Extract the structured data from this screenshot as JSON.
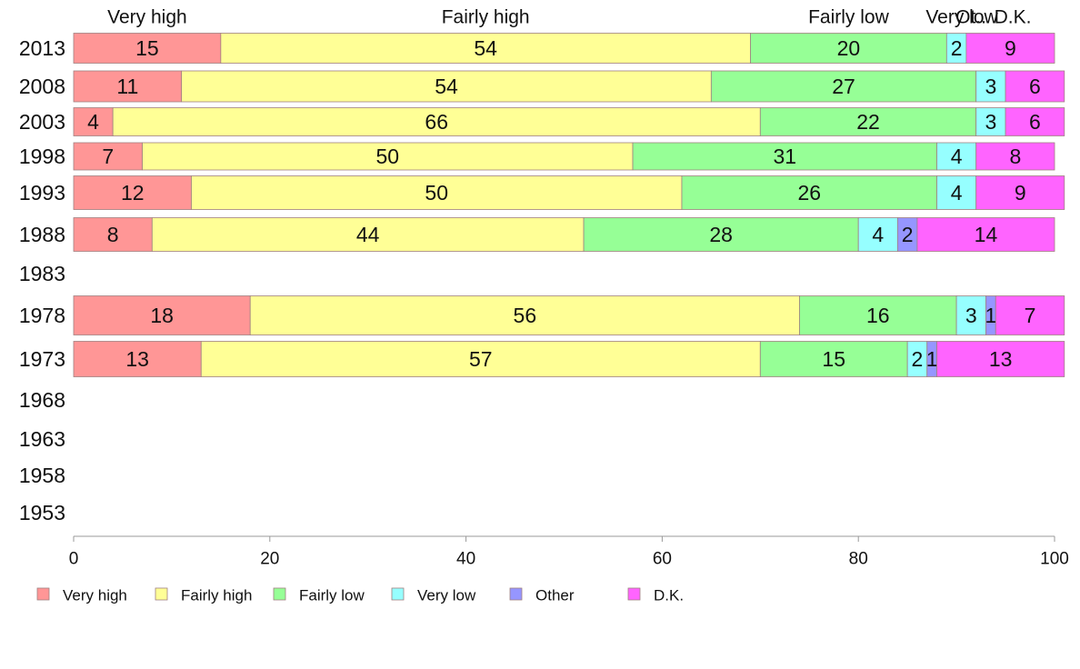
{
  "chart_data": {
    "type": "bar",
    "orientation": "horizontal",
    "stacked": true,
    "categories": [
      "2013",
      "2008",
      "2003",
      "1998",
      "1993",
      "1988",
      "1983",
      "1978",
      "1973",
      "1968",
      "1963",
      "1958",
      "1953"
    ],
    "series": [
      {
        "name": "Very high",
        "color": "#ff9696",
        "values": [
          15,
          11,
          4,
          7,
          12,
          8,
          null,
          18,
          13,
          null,
          null,
          null,
          null
        ]
      },
      {
        "name": "Fairly high",
        "color": "#ffff96",
        "values": [
          54,
          54,
          66,
          50,
          50,
          44,
          null,
          56,
          57,
          null,
          null,
          null,
          null
        ]
      },
      {
        "name": "Fairly low",
        "color": "#96ff96",
        "values": [
          20,
          27,
          22,
          31,
          26,
          28,
          null,
          16,
          15,
          null,
          null,
          null,
          null
        ]
      },
      {
        "name": "Very low",
        "color": "#96ffff",
        "values": [
          2,
          3,
          3,
          4,
          4,
          4,
          null,
          3,
          2,
          null,
          null,
          null,
          null
        ]
      },
      {
        "name": "Other",
        "color": "#9696ff",
        "values": [
          0,
          0,
          0,
          0,
          0,
          2,
          null,
          1,
          1,
          null,
          null,
          null,
          null
        ]
      },
      {
        "name": "D.K.",
        "color": "#ff64ff",
        "values": [
          9,
          6,
          6,
          8,
          9,
          14,
          null,
          7,
          13,
          null,
          null,
          null,
          null
        ]
      }
    ],
    "top_labels": [
      "Very high",
      "Fairly high",
      "Fairly low",
      "Very low",
      "Ot..",
      "D.K."
    ],
    "xlim": [
      0,
      100
    ],
    "xticks": [
      "0",
      "20",
      "40",
      "60",
      "80",
      "100"
    ],
    "grid": false,
    "legend_position": "bottom",
    "title": "",
    "xlabel": "",
    "ylabel": ""
  }
}
